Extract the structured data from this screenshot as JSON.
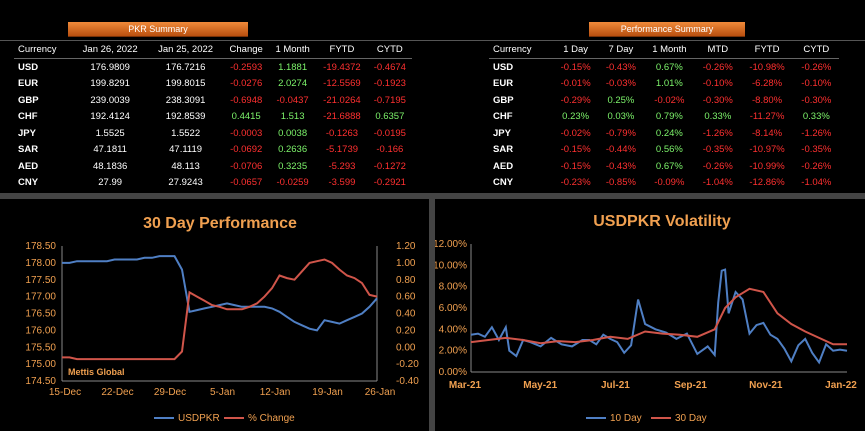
{
  "pkr_summary": {
    "title": "PKR Summary",
    "headers": [
      "Currency",
      "Jan 26, 2022",
      "Jan 25, 2022",
      "Change",
      "1 Month",
      "FYTD",
      "CYTD"
    ],
    "rows": [
      {
        "cur": "USD",
        "a": "176.9809",
        "b": "176.7216",
        "change": "-0.2593",
        "m1": "1.1881",
        "fytd": "-19.4372",
        "cytd": "-0.4674"
      },
      {
        "cur": "EUR",
        "a": "199.8291",
        "b": "199.8015",
        "change": "-0.0276",
        "m1": "2.0274",
        "fytd": "-12.5569",
        "cytd": "-0.1923"
      },
      {
        "cur": "GBP",
        "a": "239.0039",
        "b": "238.3091",
        "change": "-0.6948",
        "m1": "-0.0437",
        "fytd": "-21.0264",
        "cytd": "-0.7195"
      },
      {
        "cur": "CHF",
        "a": "192.4124",
        "b": "192.8539",
        "change": "0.4415",
        "m1": "1.513",
        "fytd": "-21.6888",
        "cytd": "0.6357"
      },
      {
        "cur": "JPY",
        "a": "1.5525",
        "b": "1.5522",
        "change": "-0.0003",
        "m1": "0.0038",
        "fytd": "-0.1263",
        "cytd": "-0.0195"
      },
      {
        "cur": "SAR",
        "a": "47.1811",
        "b": "47.1119",
        "change": "-0.0692",
        "m1": "0.2636",
        "fytd": "-5.1739",
        "cytd": "-0.166"
      },
      {
        "cur": "AED",
        "a": "48.1836",
        "b": "48.113",
        "change": "-0.0706",
        "m1": "0.3235",
        "fytd": "-5.293",
        "cytd": "-0.1272"
      },
      {
        "cur": "CNY",
        "a": "27.99",
        "b": "27.9243",
        "change": "-0.0657",
        "m1": "-0.0259",
        "fytd": "-3.599",
        "cytd": "-0.2921"
      }
    ]
  },
  "performance_summary": {
    "title": "Performance Summary",
    "headers": [
      "Currency",
      "1 Day",
      "7 Day",
      "1 Month",
      "MTD",
      "FYTD",
      "CYTD"
    ],
    "rows": [
      {
        "cur": "USD",
        "d1": "-0.15%",
        "d7": "-0.43%",
        "m1": "0.67%",
        "mtd": "-0.26%",
        "fytd": "-10.98%",
        "cytd": "-0.26%"
      },
      {
        "cur": "EUR",
        "d1": "-0.01%",
        "d7": "-0.03%",
        "m1": "1.01%",
        "mtd": "-0.10%",
        "fytd": "-6.28%",
        "cytd": "-0.10%"
      },
      {
        "cur": "GBP",
        "d1": "-0.29%",
        "d7": "0.25%",
        "m1": "-0.02%",
        "mtd": "-0.30%",
        "fytd": "-8.80%",
        "cytd": "-0.30%"
      },
      {
        "cur": "CHF",
        "d1": "0.23%",
        "d7": "0.03%",
        "m1": "0.79%",
        "mtd": "0.33%",
        "fytd": "-11.27%",
        "cytd": "0.33%"
      },
      {
        "cur": "JPY",
        "d1": "-0.02%",
        "d7": "-0.79%",
        "m1": "0.24%",
        "mtd": "-1.26%",
        "fytd": "-8.14%",
        "cytd": "-1.26%"
      },
      {
        "cur": "SAR",
        "d1": "-0.15%",
        "d7": "-0.44%",
        "m1": "0.56%",
        "mtd": "-0.35%",
        "fytd": "-10.97%",
        "cytd": "-0.35%"
      },
      {
        "cur": "AED",
        "d1": "-0.15%",
        "d7": "-0.43%",
        "m1": "0.67%",
        "mtd": "-0.26%",
        "fytd": "-10.99%",
        "cytd": "-0.26%"
      },
      {
        "cur": "CNY",
        "d1": "-0.23%",
        "d7": "-0.85%",
        "m1": "-0.09%",
        "mtd": "-1.04%",
        "fytd": "-12.86%",
        "cytd": "-1.04%"
      }
    ]
  },
  "colors": {
    "positive": "#7cf26a",
    "negative": "#ff3030",
    "usdpkr": "#4f7fc4",
    "change": "#d0554a",
    "title": "#f0a050",
    "axis": "#f0a050"
  },
  "chart_data": [
    {
      "type": "line",
      "title": "30 Day Performance",
      "watermark": "Mettis Global",
      "x_tick_labels": [
        "15-Dec",
        "22-Dec",
        "29-Dec",
        "5-Jan",
        "12-Jan",
        "19-Jan",
        "26-Jan"
      ],
      "x_range": [
        0,
        42
      ],
      "y_left": {
        "min": 174.5,
        "max": 178.5,
        "ticks": [
          "178.50",
          "178.00",
          "177.50",
          "177.00",
          "176.50",
          "176.00",
          "175.50",
          "175.00",
          "174.50"
        ]
      },
      "y_right": {
        "min": -0.4,
        "max": 1.2,
        "ticks": [
          "1.20",
          "1.00",
          "0.80",
          "0.60",
          "0.40",
          "0.20",
          "0.00",
          "-0.20",
          "-0.40"
        ]
      },
      "series": [
        {
          "name": "USDPKR",
          "axis": "left",
          "color": "#4f7fc4",
          "x": [
            0,
            1,
            2,
            3,
            4,
            5,
            6,
            7,
            8,
            9,
            10,
            11,
            12,
            13,
            14,
            15,
            16,
            17,
            18,
            19,
            20,
            21,
            22,
            23,
            24,
            25,
            26,
            27,
            28,
            29,
            30,
            31,
            32,
            33,
            34,
            35,
            36,
            37,
            38,
            39,
            40,
            41,
            42
          ],
          "y": [
            178.0,
            178.0,
            178.05,
            178.05,
            178.05,
            178.05,
            178.05,
            178.1,
            178.1,
            178.1,
            178.1,
            178.15,
            178.15,
            178.2,
            178.2,
            178.2,
            177.8,
            176.55,
            176.6,
            176.65,
            176.7,
            176.75,
            176.8,
            176.75,
            176.7,
            176.7,
            176.7,
            176.7,
            176.65,
            176.55,
            176.4,
            176.25,
            176.15,
            176.05,
            176.0,
            176.3,
            176.25,
            176.2,
            176.3,
            176.4,
            176.5,
            176.7,
            176.95
          ]
        },
        {
          "name": "% Change",
          "axis": "right",
          "color": "#d0554a",
          "x": [
            0,
            1,
            2,
            3,
            4,
            5,
            6,
            7,
            8,
            9,
            10,
            11,
            12,
            13,
            14,
            15,
            16,
            17,
            18,
            19,
            20,
            21,
            22,
            23,
            24,
            25,
            26,
            27,
            28,
            29,
            30,
            31,
            32,
            33,
            34,
            35,
            36,
            37,
            38,
            39,
            40,
            41,
            42
          ],
          "y": [
            -0.12,
            -0.12,
            -0.14,
            -0.14,
            -0.14,
            -0.14,
            -0.14,
            -0.14,
            -0.14,
            -0.14,
            -0.14,
            -0.14,
            -0.14,
            -0.14,
            -0.14,
            -0.14,
            -0.05,
            0.65,
            0.6,
            0.55,
            0.5,
            0.48,
            0.45,
            0.45,
            0.45,
            0.48,
            0.52,
            0.6,
            0.7,
            0.85,
            0.82,
            0.8,
            0.9,
            1.0,
            1.02,
            1.04,
            1.0,
            0.92,
            0.85,
            0.82,
            0.76,
            0.62,
            0.6
          ]
        }
      ],
      "legend": [
        "USDPKR",
        "% Change"
      ]
    },
    {
      "type": "line",
      "title": "USDPKR Volatility",
      "x_tick_labels": [
        "Mar-21",
        "May-21",
        "Jul-21",
        "Sep-21",
        "Nov-21",
        "Jan-22"
      ],
      "x_range": [
        0,
        10.8
      ],
      "y": {
        "min": 0,
        "max": 12,
        "ticks": [
          "12.00%",
          "10.00%",
          "8.00%",
          "6.00%",
          "4.00%",
          "2.00%",
          "0.00%"
        ]
      },
      "series": [
        {
          "name": "10 Day",
          "color": "#4f7fc4",
          "x": [
            0,
            0.2,
            0.4,
            0.6,
            0.8,
            1.0,
            1.1,
            1.3,
            1.5,
            1.7,
            2.0,
            2.3,
            2.6,
            2.9,
            3.2,
            3.4,
            3.6,
            3.8,
            4.0,
            4.2,
            4.4,
            4.6,
            4.8,
            5.0,
            5.3,
            5.6,
            5.9,
            6.2,
            6.5,
            6.8,
            7.0,
            7.1,
            7.2,
            7.3,
            7.4,
            7.6,
            7.8,
            8.0,
            8.2,
            8.4,
            8.6,
            8.8,
            9.0,
            9.2,
            9.4,
            9.6,
            9.8,
            10.0,
            10.2,
            10.4,
            10.6,
            10.8
          ],
          "y": [
            3.5,
            3.6,
            3.3,
            4.2,
            3.0,
            4.2,
            2.0,
            1.5,
            3.0,
            2.8,
            2.4,
            3.2,
            2.6,
            2.4,
            3.0,
            3.0,
            2.6,
            3.5,
            3.1,
            2.8,
            1.8,
            2.5,
            6.8,
            4.5,
            4.0,
            3.7,
            3.1,
            3.6,
            1.7,
            2.4,
            1.6,
            6.5,
            9.5,
            9.6,
            5.5,
            7.5,
            6.8,
            3.6,
            4.4,
            4.6,
            3.5,
            3.1,
            2.2,
            1.0,
            2.5,
            3.1,
            1.8,
            0.9,
            2.6,
            2.0,
            2.1,
            2.0
          ]
        },
        {
          "name": "30 Day",
          "color": "#d0554a",
          "x": [
            0,
            0.5,
            1.0,
            1.5,
            2.0,
            2.5,
            3.0,
            3.5,
            4.0,
            4.5,
            5.0,
            5.5,
            6.0,
            6.5,
            7.0,
            7.3,
            7.6,
            8.0,
            8.4,
            8.8,
            9.2,
            9.6,
            10.0,
            10.4,
            10.8
          ],
          "y": [
            2.8,
            3.0,
            3.2,
            3.0,
            2.7,
            2.9,
            2.8,
            3.0,
            3.3,
            3.1,
            3.8,
            3.6,
            3.5,
            3.3,
            4.0,
            6.0,
            7.0,
            7.8,
            7.5,
            5.5,
            4.5,
            3.8,
            3.2,
            2.6,
            2.6
          ]
        }
      ],
      "legend": [
        "10 Day",
        "30 Day"
      ]
    }
  ]
}
